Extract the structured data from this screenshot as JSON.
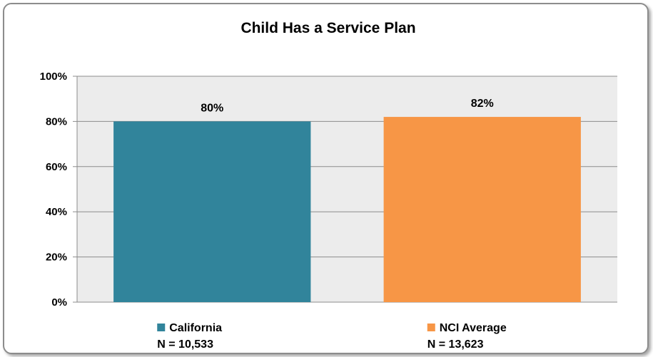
{
  "chart_data": {
    "type": "bar",
    "title": "Child Has a Service Plan",
    "categories": [
      "California",
      "NCI Average"
    ],
    "values": [
      80,
      82
    ],
    "data_labels": [
      "80%",
      "82%"
    ],
    "category_notes": [
      "N = 10,533",
      "N = 13,623"
    ],
    "colors": [
      "#31849b",
      "#f79646"
    ],
    "ylim": [
      0,
      100
    ],
    "yticks": [
      0,
      20,
      40,
      60,
      80,
      100
    ],
    "ytick_labels": [
      "0%",
      "20%",
      "40%",
      "60%",
      "80%",
      "100%"
    ],
    "xlabel": "",
    "ylabel": "",
    "grid": true,
    "plot_background": "#ececec",
    "legend_position": "bottom"
  }
}
